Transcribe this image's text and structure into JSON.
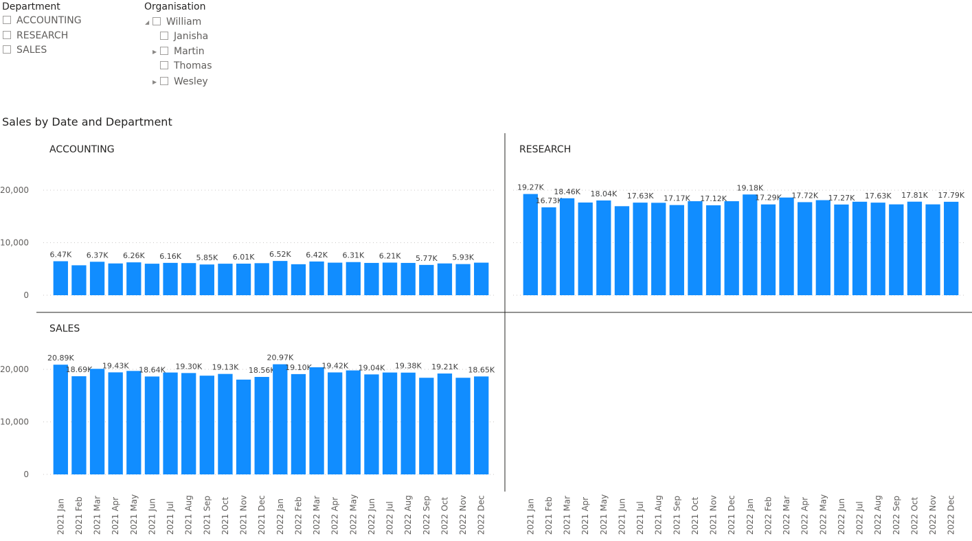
{
  "slicers": {
    "department": {
      "title": "Department",
      "items": [
        "ACCOUNTING",
        "RESEARCH",
        "SALES"
      ]
    },
    "organisation": {
      "title": "Organisation",
      "root": "William",
      "children": [
        {
          "label": "Janisha",
          "expandable": false
        },
        {
          "label": "Martin",
          "expandable": true
        },
        {
          "label": "Thomas",
          "expandable": false
        },
        {
          "label": "Wesley",
          "expandable": true
        }
      ]
    }
  },
  "visual": {
    "title": "Sales by Date and Department"
  },
  "colors": {
    "bar": "#118DFF",
    "text": "#252423",
    "axis": "#605e5c",
    "grid": "#c8c6c4"
  },
  "chart_data": {
    "type": "bar",
    "title": "Sales by Date and Department",
    "ylim": [
      0,
      22000
    ],
    "yticks": [
      "0",
      "10,000",
      "20,000"
    ],
    "grid": true,
    "categories": [
      "2021 Jan",
      "2021 Feb",
      "2021 Mar",
      "2021 Apr",
      "2021 May",
      "2021 Jun",
      "2021 Jul",
      "2021 Aug",
      "2021 Sep",
      "2021 Oct",
      "2021 Nov",
      "2021 Dec",
      "2022 Jan",
      "2022 Feb",
      "2022 Mar",
      "2022 Apr",
      "2022 May",
      "2022 Jun",
      "2022 Jul",
      "2022 Aug",
      "2022 Sep",
      "2022 Oct",
      "2022 Nov",
      "2022 Dec"
    ],
    "panels": [
      {
        "name": "ACCOUNTING",
        "values": [
          6470,
          5700,
          6370,
          6050,
          6260,
          6000,
          6160,
          6120,
          5850,
          6000,
          6010,
          6100,
          6520,
          5900,
          6420,
          6200,
          6310,
          6150,
          6210,
          6150,
          5770,
          6050,
          5930,
          6200
        ],
        "labels": [
          "6.47K",
          "",
          "6.37K",
          "",
          "6.26K",
          "",
          "6.16K",
          "",
          "5.85K",
          "",
          "6.01K",
          "",
          "6.52K",
          "",
          "6.42K",
          "",
          "6.31K",
          "",
          "6.21K",
          "",
          "5.77K",
          "",
          "5.93K",
          ""
        ]
      },
      {
        "name": "RESEARCH",
        "values": [
          19270,
          16730,
          18460,
          17650,
          18040,
          16950,
          17630,
          17600,
          17170,
          17900,
          17120,
          17900,
          19180,
          17290,
          18600,
          17720,
          18100,
          17270,
          17800,
          17630,
          17300,
          17810,
          17300,
          17790
        ],
        "labels": [
          "19.27K",
          "16.73K",
          "18.46K",
          "",
          "18.04K",
          "",
          "17.63K",
          "",
          "17.17K",
          "",
          "17.12K",
          "",
          "19.18K",
          "17.29K",
          "",
          "17.72K",
          "",
          "17.27K",
          "",
          "17.63K",
          "",
          "17.81K",
          "",
          "17.79K"
        ]
      },
      {
        "name": "SALES",
        "values": [
          20890,
          18690,
          20100,
          19430,
          19700,
          18640,
          19400,
          19300,
          18800,
          19130,
          18050,
          18560,
          20970,
          19100,
          20400,
          19420,
          19800,
          19040,
          19400,
          19380,
          18400,
          19210,
          18400,
          18650
        ],
        "labels": [
          "20.89K",
          "18.69K",
          "",
          "19.43K",
          "",
          "18.64K",
          "",
          "19.30K",
          "",
          "19.13K",
          "",
          "18.56K",
          "20.97K",
          "19.10K",
          "",
          "19.42K",
          "",
          "19.04K",
          "",
          "19.38K",
          "",
          "19.21K",
          "",
          "18.65K"
        ]
      }
    ]
  }
}
